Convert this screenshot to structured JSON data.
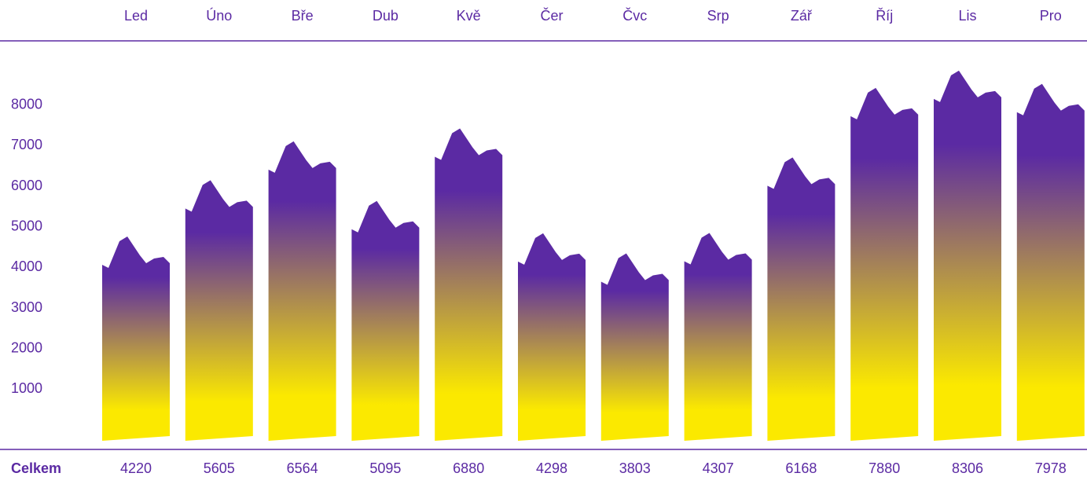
{
  "chart_data": {
    "type": "bar",
    "categories": [
      "Led",
      "Úno",
      "Bře",
      "Dub",
      "Kvě",
      "Čer",
      "Čvc",
      "Srp",
      "Zář",
      "Říj",
      "Lis",
      "Pro"
    ],
    "values": [
      4220,
      5605,
      6564,
      5095,
      6880,
      4298,
      3803,
      4307,
      6168,
      7880,
      8306,
      7978
    ],
    "total_label": "Celkem",
    "ylim": [
      0,
      9000
    ],
    "yticks": [
      1000,
      2000,
      3000,
      4000,
      5000,
      6000,
      7000,
      8000
    ],
    "color_top": "#5b2aa3",
    "color_bottom": "#fbe900",
    "line_color": "#5b2aa3"
  }
}
